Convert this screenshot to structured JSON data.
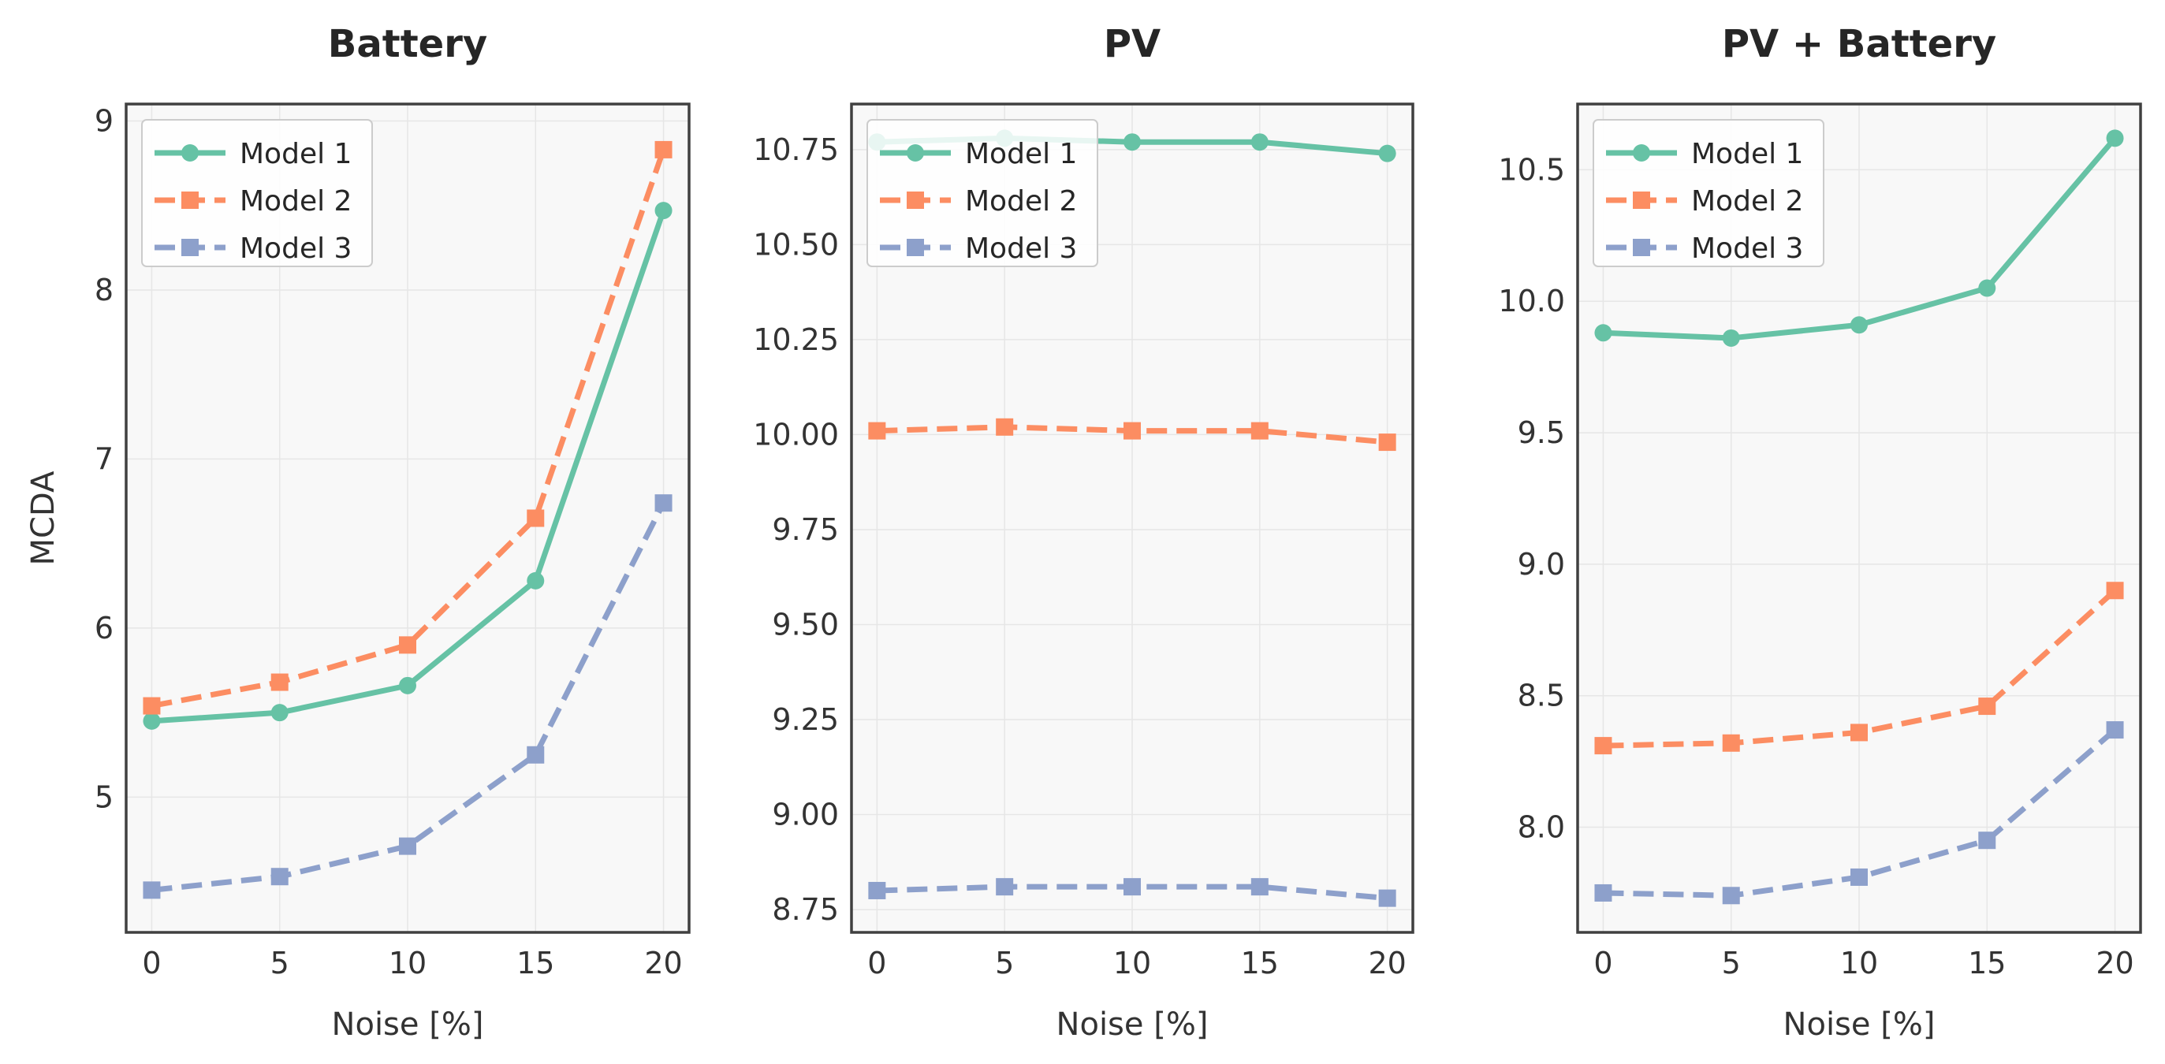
{
  "chart_data": [
    {
      "type": "line",
      "title": "Battery",
      "xlabel": "Noise [%]",
      "ylabel": "MCDA",
      "x": [
        0,
        5,
        10,
        15,
        20
      ],
      "xticks": [
        "0",
        "5",
        "10",
        "15",
        "20"
      ],
      "xlim": [
        -1,
        21
      ],
      "ylim": [
        4.2,
        9.1
      ],
      "yticks": [
        "5",
        "6",
        "7",
        "8",
        "9"
      ],
      "ytick_values": [
        5,
        6,
        7,
        8,
        9
      ],
      "grid": true,
      "legend_position": "top-left",
      "series": [
        {
          "name": "Model 1",
          "values": [
            5.45,
            5.5,
            5.66,
            6.28,
            8.47
          ]
        },
        {
          "name": "Model 2",
          "values": [
            5.54,
            5.68,
            5.9,
            6.65,
            8.83
          ]
        },
        {
          "name": "Model 3",
          "values": [
            4.45,
            4.53,
            4.71,
            5.25,
            6.74
          ]
        }
      ]
    },
    {
      "type": "line",
      "title": "PV",
      "xlabel": "Noise [%]",
      "ylabel": "",
      "x": [
        0,
        5,
        10,
        15,
        20
      ],
      "xticks": [
        "0",
        "5",
        "10",
        "15",
        "20"
      ],
      "xlim": [
        -1,
        21
      ],
      "ylim": [
        8.69,
        10.87
      ],
      "yticks": [
        "8.75",
        "9.00",
        "9.25",
        "9.50",
        "9.75",
        "10.00",
        "10.25",
        "10.50",
        "10.75"
      ],
      "ytick_values": [
        8.75,
        9.0,
        9.25,
        9.5,
        9.75,
        10.0,
        10.25,
        10.5,
        10.75
      ],
      "grid": true,
      "legend_position": "top-left",
      "series": [
        {
          "name": "Model 1",
          "values": [
            10.77,
            10.78,
            10.77,
            10.77,
            10.74
          ]
        },
        {
          "name": "Model 2",
          "values": [
            10.01,
            10.02,
            10.01,
            10.01,
            9.98
          ]
        },
        {
          "name": "Model 3",
          "values": [
            8.8,
            8.81,
            8.81,
            8.81,
            8.78
          ]
        }
      ]
    },
    {
      "type": "line",
      "title": "PV + Battery",
      "xlabel": "Noise [%]",
      "ylabel": "",
      "x": [
        0,
        5,
        10,
        15,
        20
      ],
      "xticks": [
        "0",
        "5",
        "10",
        "15",
        "20"
      ],
      "xlim": [
        -1,
        21
      ],
      "ylim": [
        7.6,
        10.75
      ],
      "yticks": [
        "8.0",
        "8.5",
        "9.0",
        "9.5",
        "10.0",
        "10.5"
      ],
      "ytick_values": [
        8.0,
        8.5,
        9.0,
        9.5,
        10.0,
        10.5
      ],
      "grid": true,
      "legend_position": "top-left",
      "series": [
        {
          "name": "Model 1",
          "values": [
            9.88,
            9.86,
            9.91,
            10.05,
            10.62
          ]
        },
        {
          "name": "Model 2",
          "values": [
            8.31,
            8.32,
            8.36,
            8.46,
            8.9
          ]
        },
        {
          "name": "Model 3",
          "values": [
            7.75,
            7.74,
            7.81,
            7.95,
            8.37
          ]
        }
      ]
    }
  ],
  "style": {
    "series_colors": [
      "#66c2a5",
      "#fc8d62",
      "#8da0cb"
    ],
    "series_markers": [
      "circle",
      "square",
      "square"
    ],
    "series_dash": [
      "solid",
      "dashed",
      "dashed"
    ],
    "plot_background": "#f8f8f8",
    "grid_color": "#e6e6e6",
    "axis_color": "#404040"
  }
}
